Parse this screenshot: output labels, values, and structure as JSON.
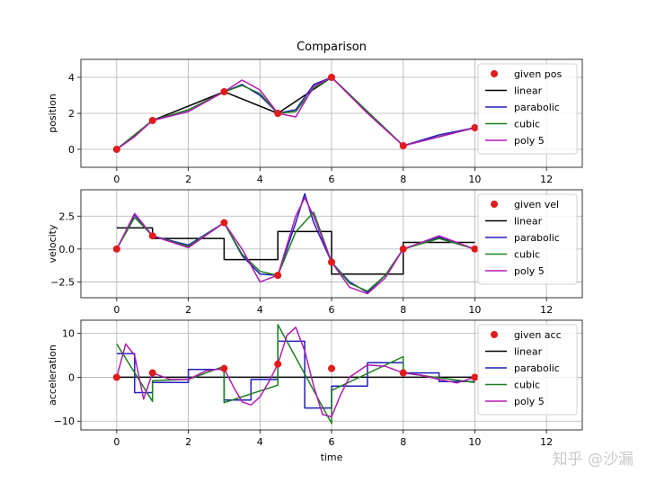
{
  "figure_title": "Comparison",
  "watermark": "知乎 @沙漏",
  "colors": {
    "given": "#e31a1c",
    "linear": "#000000",
    "parabolic": "#1f1fbf",
    "cubic": "#1a7f1a",
    "poly5": "#b31ab3",
    "grid": "#b0b0b0"
  },
  "chart_data": [
    {
      "type": "line",
      "ylabel": "position",
      "xlim": [
        -1,
        13
      ],
      "ylim": [
        -1,
        5
      ],
      "xticks": [
        0,
        2,
        4,
        6,
        8,
        10,
        12
      ],
      "yticks": [
        0,
        2,
        4
      ],
      "grid": true,
      "legend": "top-right",
      "given": {
        "name": "given pos",
        "x": [
          0,
          1,
          3,
          4.5,
          6,
          8,
          10
        ],
        "y": [
          0,
          1.6,
          3.2,
          2.0,
          4.0,
          0.2,
          1.2
        ]
      },
      "series": [
        {
          "name": "linear",
          "color": "#000000",
          "x": [
            0,
            1,
            3,
            4.5,
            6,
            8,
            10
          ],
          "y": [
            0,
            1.6,
            3.2,
            2.0,
            4.0,
            0.2,
            1.2
          ]
        },
        {
          "name": "parabolic",
          "color": "#1f1fbf",
          "x": [
            0,
            0.5,
            1,
            2,
            3,
            3.5,
            4,
            4.5,
            5,
            5.5,
            6,
            7,
            8,
            9,
            10
          ],
          "y": [
            0,
            0.75,
            1.6,
            2.1,
            3.2,
            3.6,
            3.0,
            2.0,
            2.2,
            3.6,
            4.0,
            2.1,
            0.2,
            0.8,
            1.2
          ]
        },
        {
          "name": "cubic",
          "color": "#1a7f1a",
          "x": [
            0,
            0.5,
            1,
            2,
            3,
            3.5,
            4,
            4.5,
            5,
            5.5,
            6,
            7,
            8,
            9,
            10
          ],
          "y": [
            0,
            0.8,
            1.6,
            2.2,
            3.2,
            3.55,
            3.1,
            2.0,
            2.1,
            3.4,
            4.0,
            2.1,
            0.2,
            0.7,
            1.2
          ]
        },
        {
          "name": "poly 5",
          "color": "#b31ab3",
          "x": [
            0,
            0.5,
            1,
            2,
            3,
            3.5,
            4,
            4.5,
            5,
            5.5,
            6,
            7,
            8,
            9,
            10
          ],
          "y": [
            0,
            0.7,
            1.6,
            2.1,
            3.2,
            3.85,
            3.3,
            2.0,
            1.8,
            3.5,
            4.0,
            2.0,
            0.2,
            0.7,
            1.2
          ]
        }
      ]
    },
    {
      "type": "line",
      "ylabel": "velocity",
      "xlim": [
        -1,
        13
      ],
      "ylim": [
        -3.7,
        4.5
      ],
      "xticks": [
        0,
        2,
        4,
        6,
        8,
        10,
        12
      ],
      "yticks": [
        -2.5,
        0.0,
        2.5
      ],
      "ytick_labels": [
        "−2.5",
        "0.0",
        "2.5"
      ],
      "grid": true,
      "legend": "top-right",
      "given": {
        "name": "given vel",
        "x": [
          0,
          1,
          3,
          4.5,
          6,
          8,
          10
        ],
        "y": [
          0,
          1.0,
          2.0,
          -2.0,
          -1.0,
          0,
          0
        ]
      },
      "series": [
        {
          "name": "linear",
          "color": "#000000",
          "x": [
            0,
            1,
            1,
            3,
            3,
            4.5,
            4.5,
            6,
            6,
            8,
            8,
            10
          ],
          "y": [
            1.6,
            1.6,
            0.8,
            0.8,
            -0.8,
            -0.8,
            1.33,
            1.33,
            -1.9,
            -1.9,
            0.5,
            0.5
          ]
        },
        {
          "name": "parabolic",
          "color": "#1f1fbf",
          "x": [
            0,
            0.5,
            1,
            2,
            3,
            3.5,
            4,
            4.5,
            5,
            5.25,
            5.5,
            6,
            6.5,
            7,
            7.5,
            8,
            9,
            10
          ],
          "y": [
            0,
            2.6,
            1.0,
            0.3,
            2.0,
            -0.5,
            -1.9,
            -2.0,
            2.0,
            4.2,
            2.0,
            -1.0,
            -2.5,
            -3.3,
            -2.0,
            0,
            0.9,
            0
          ]
        },
        {
          "name": "cubic",
          "color": "#1a7f1a",
          "x": [
            0,
            0.5,
            1,
            2,
            3,
            3.5,
            4,
            4.5,
            5,
            5.5,
            6,
            6.5,
            7,
            7.5,
            8,
            9,
            10
          ],
          "y": [
            0,
            2.4,
            1.0,
            0.2,
            2.0,
            -0.4,
            -1.7,
            -2.0,
            1.3,
            2.8,
            -1.0,
            -2.6,
            -3.2,
            -2.0,
            0,
            0.8,
            0
          ]
        },
        {
          "name": "poly 5",
          "color": "#b31ab3",
          "x": [
            0,
            0.5,
            1,
            2,
            3,
            3.5,
            4,
            4.5,
            5,
            5.25,
            5.5,
            6,
            6.5,
            7,
            7.5,
            8,
            9,
            10
          ],
          "y": [
            0,
            2.7,
            1.0,
            0.1,
            2.0,
            0.0,
            -2.5,
            -2.0,
            2.5,
            3.9,
            2.5,
            -1.0,
            -2.9,
            -3.4,
            -2.2,
            0,
            1.0,
            0
          ]
        }
      ]
    },
    {
      "type": "line",
      "ylabel": "acceleration",
      "xlabel": "time",
      "xlim": [
        -1,
        13
      ],
      "ylim": [
        -12,
        13
      ],
      "xticks": [
        0,
        2,
        4,
        6,
        8,
        10,
        12
      ],
      "yticks": [
        -10,
        0,
        10
      ],
      "ytick_labels": [
        "−10",
        "0",
        "10"
      ],
      "grid": true,
      "legend": "top-right",
      "given": {
        "name": "given acc",
        "x": [
          0,
          1,
          3,
          4.5,
          6,
          8,
          10
        ],
        "y": [
          0,
          1.0,
          2.0,
          3.0,
          2.0,
          1.0,
          0
        ]
      },
      "series": [
        {
          "name": "linear",
          "color": "#000000",
          "x": [
            0,
            10
          ],
          "y": [
            0,
            0
          ]
        },
        {
          "name": "parabolic",
          "color": "#1f1fbf",
          "x": [
            0,
            0.5,
            0.5,
            1,
            1,
            2,
            2,
            3,
            3,
            3.75,
            3.75,
            4.5,
            4.5,
            5.25,
            5.25,
            6,
            6,
            7,
            7,
            8,
            8,
            9,
            9,
            10
          ],
          "y": [
            5.4,
            5.4,
            -3.5,
            -3.5,
            -1.2,
            -1.2,
            1.8,
            1.8,
            -5.2,
            -5.2,
            -0.5,
            -0.5,
            8.2,
            8.2,
            -7.0,
            -7.0,
            -2.0,
            -2.0,
            3.3,
            3.3,
            1.0,
            1.0,
            -1.0,
            -1.0
          ]
        },
        {
          "name": "cubic",
          "color": "#1a7f1a",
          "x": [
            0,
            1,
            1,
            2,
            3,
            3,
            4.5,
            4.5,
            6,
            6,
            8,
            8,
            10
          ],
          "y": [
            7.6,
            -5.5,
            -0.8,
            -0.5,
            2.5,
            -5.8,
            -1.8,
            12.0,
            -10.5,
            -3.0,
            4.7,
            1.0,
            -1.2
          ]
        },
        {
          "name": "poly 5",
          "color": "#b31ab3",
          "x": [
            0,
            0.25,
            0.5,
            0.75,
            1,
            1.5,
            2,
            2.5,
            3,
            3.25,
            3.5,
            3.75,
            4,
            4.25,
            4.5,
            4.75,
            5,
            5.25,
            5.5,
            5.75,
            6,
            6.25,
            6.5,
            7,
            7.5,
            8,
            8.5,
            9,
            9.5,
            10
          ],
          "y": [
            0,
            7.6,
            5.0,
            -5.0,
            1.0,
            -0.5,
            -0.5,
            1.5,
            2.0,
            -2.0,
            -5.6,
            -6.3,
            -4.5,
            -1.0,
            3.0,
            9.5,
            11.4,
            6.0,
            -2.0,
            -8.5,
            -9.0,
            -4.0,
            0,
            2.8,
            2.5,
            1.0,
            0.5,
            -0.5,
            -1.3,
            0
          ]
        }
      ]
    }
  ]
}
